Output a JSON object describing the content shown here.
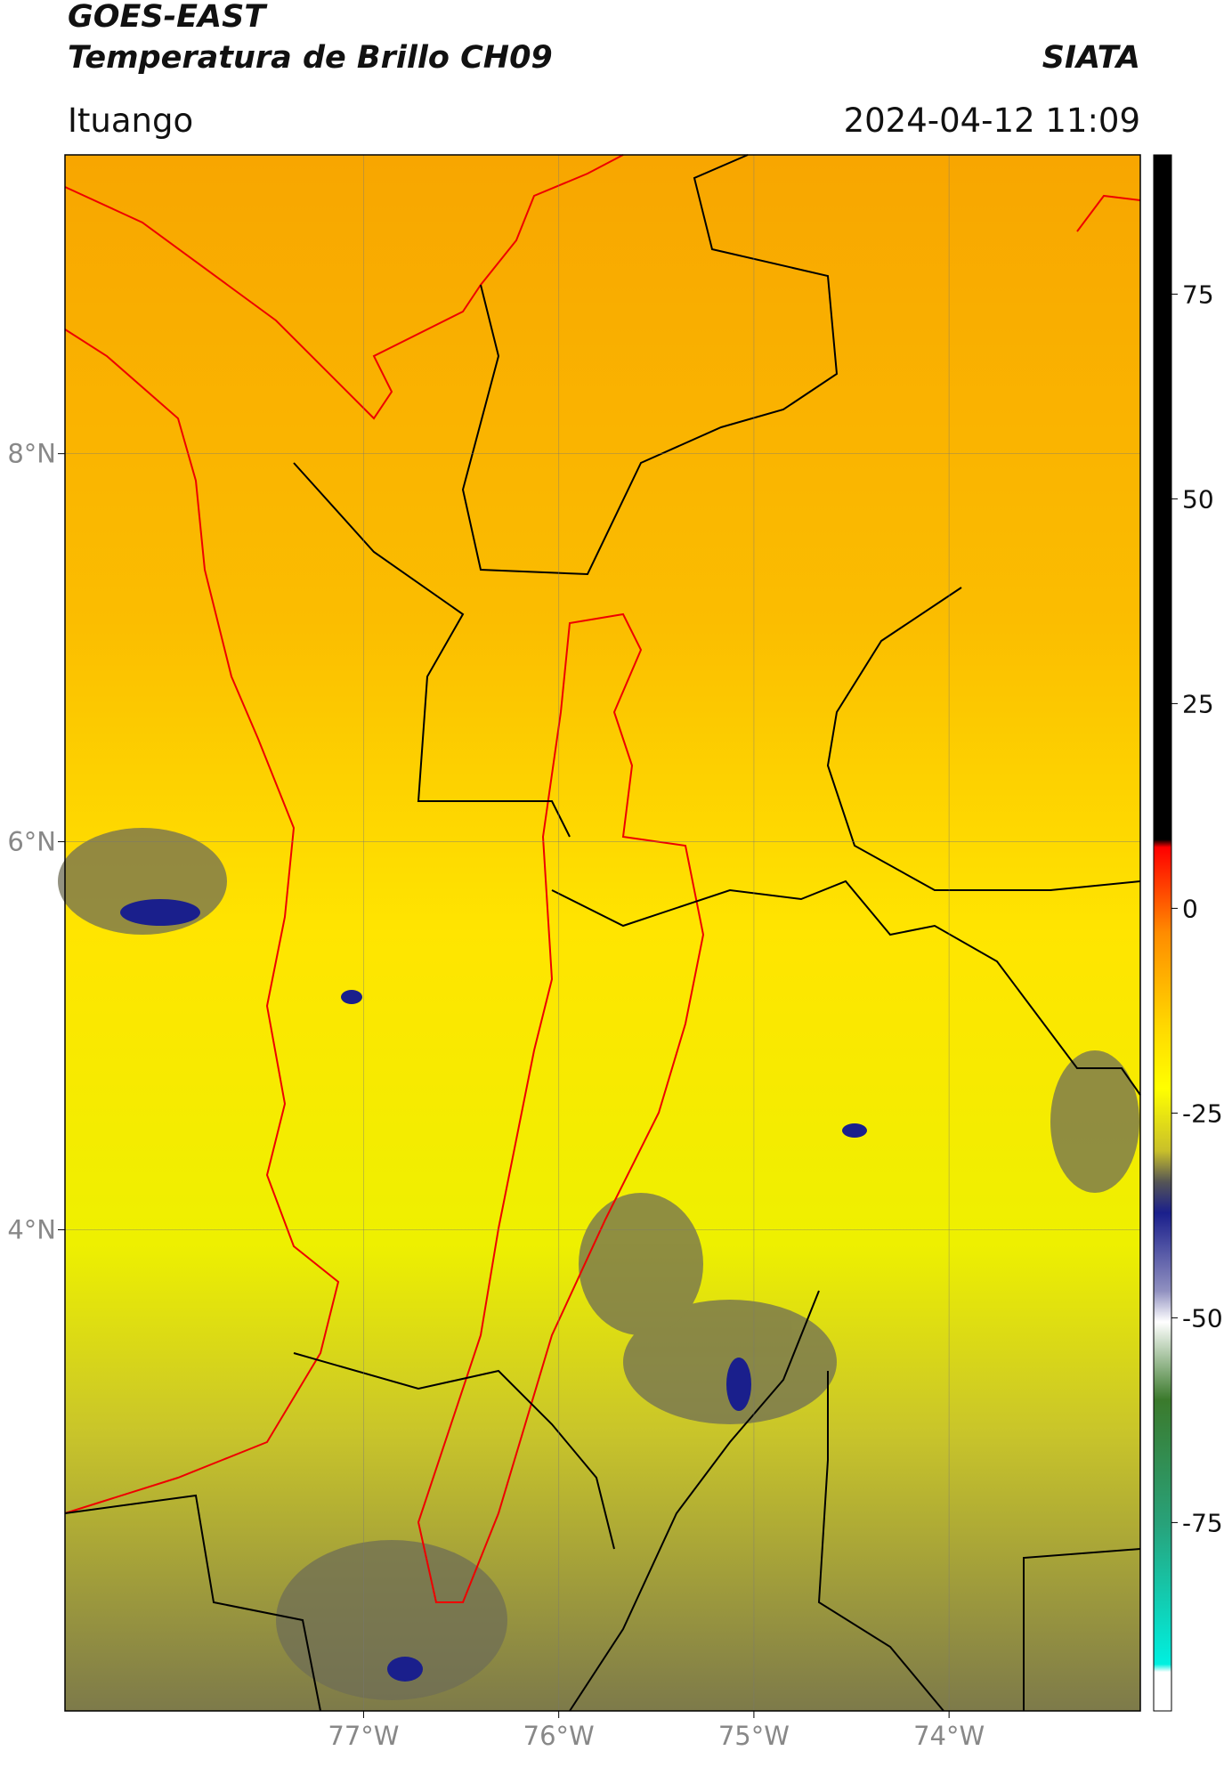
{
  "header": {
    "title_line1": "GOES-EAST",
    "title_line2": "Temperatura de Brillo CH09",
    "source": "SIATA",
    "region": "Ituango",
    "datetime": "2024-04-12 11:09"
  },
  "map": {
    "lonlim": [
      -78.53,
      -73.02
    ],
    "latlim": [
      1.52,
      9.54
    ],
    "xticks": [
      {
        "value": -77,
        "label": "77°W"
      },
      {
        "value": -76,
        "label": "76°W"
      },
      {
        "value": -75,
        "label": "75°W"
      },
      {
        "value": -74,
        "label": "74°W"
      }
    ],
    "yticks": [
      {
        "value": 8,
        "label": "8°N"
      },
      {
        "value": 6,
        "label": "6°N"
      },
      {
        "value": 4,
        "label": "4°N"
      }
    ],
    "grid": true
  },
  "colorbar": {
    "lim": [
      -98,
      92
    ],
    "ticks": [
      75,
      50,
      25,
      0,
      -25,
      -50,
      -75
    ]
  }
}
